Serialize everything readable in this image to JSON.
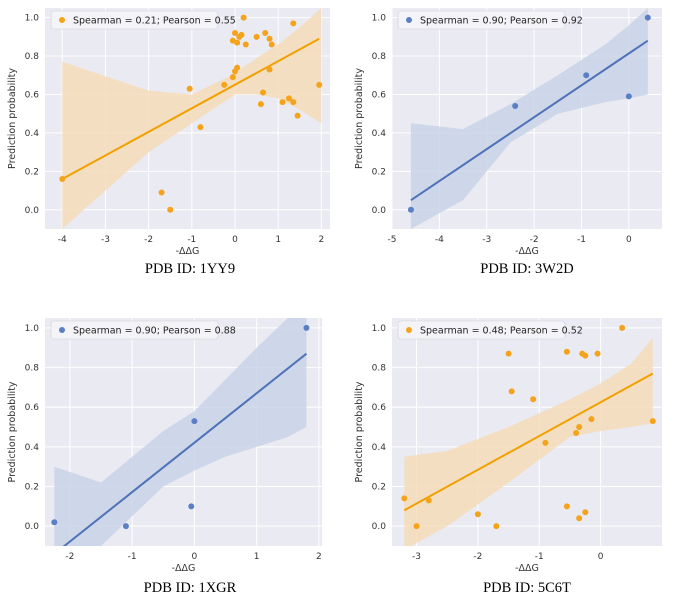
{
  "colors": {
    "orange": "#f5a31a",
    "orange_line": "#f0a000",
    "orange_band": "#f6dcb8",
    "blue": "#5b7fc4",
    "blue_line": "#4f72b8",
    "blue_band": "#c9d3e8",
    "panel_bg": "#eaeaf2",
    "grid": "#ffffff"
  },
  "chart_data": [
    {
      "type": "scatter",
      "caption": "PDB ID: 1YY9",
      "xlabel": "-ΔΔG",
      "ylabel": "Prediction probability",
      "legend": "Spearman = 0.21; Pearson = 0.55",
      "legend_position": "top-left",
      "color": "orange",
      "xlim": [
        -4.4,
        2.2
      ],
      "ylim": [
        -0.1,
        1.05
      ],
      "xticks": [
        -4,
        -3,
        -2,
        -1,
        0,
        1,
        2
      ],
      "yticks": [
        0.0,
        0.2,
        0.4,
        0.6,
        0.8,
        1.0
      ],
      "points": [
        [
          -4.0,
          0.16
        ],
        [
          -1.7,
          0.09
        ],
        [
          -1.5,
          0.0
        ],
        [
          -1.05,
          0.63
        ],
        [
          -0.8,
          0.43
        ],
        [
          -0.25,
          0.65
        ],
        [
          -0.05,
          0.69
        ],
        [
          0.0,
          0.72
        ],
        [
          0.05,
          0.74
        ],
        [
          -0.05,
          0.88
        ],
        [
          0.0,
          0.92
        ],
        [
          0.1,
          0.9
        ],
        [
          0.05,
          0.87
        ],
        [
          0.15,
          0.91
        ],
        [
          0.2,
          1.0
        ],
        [
          0.25,
          0.86
        ],
        [
          0.5,
          0.9
        ],
        [
          0.6,
          0.55
        ],
        [
          0.65,
          0.61
        ],
        [
          0.7,
          0.92
        ],
        [
          0.8,
          0.89
        ],
        [
          0.85,
          0.86
        ],
        [
          0.8,
          0.73
        ],
        [
          1.1,
          0.56
        ],
        [
          1.25,
          0.58
        ],
        [
          1.35,
          0.56
        ],
        [
          1.35,
          0.97
        ],
        [
          1.45,
          0.49
        ],
        [
          1.95,
          0.65
        ]
      ],
      "regression": {
        "x": [
          -4.0,
          1.95
        ],
        "y": [
          0.16,
          0.89
        ]
      },
      "band": [
        [
          -4.0,
          0.77,
          -0.1
        ],
        [
          -2.0,
          0.62,
          0.3
        ],
        [
          -1.0,
          0.6,
          0.45
        ],
        [
          0.0,
          0.71,
          0.6
        ],
        [
          0.5,
          0.79,
          0.6
        ],
        [
          1.0,
          0.86,
          0.58
        ],
        [
          1.5,
          0.95,
          0.52
        ],
        [
          2.0,
          1.05,
          0.45
        ]
      ]
    },
    {
      "type": "scatter",
      "caption": "PDB ID: 3W2D",
      "xlabel": "-ΔΔG",
      "ylabel": "Prediction probability",
      "legend": "Spearman = 0.90; Pearson = 0.92",
      "legend_position": "top-left",
      "color": "blue",
      "xlim": [
        -5.0,
        0.7
      ],
      "ylim": [
        -0.1,
        1.05
      ],
      "xticks": [
        -5,
        -4,
        -3,
        -2,
        -1,
        0
      ],
      "yticks": [
        0.0,
        0.2,
        0.4,
        0.6,
        0.8,
        1.0
      ],
      "points": [
        [
          -4.6,
          0.0
        ],
        [
          -2.4,
          0.54
        ],
        [
          -0.9,
          0.7
        ],
        [
          0.0,
          0.59
        ],
        [
          0.4,
          1.0
        ]
      ],
      "regression": {
        "x": [
          -4.6,
          0.4
        ],
        "y": [
          0.05,
          0.88
        ]
      },
      "band": [
        [
          -4.6,
          0.45,
          -0.1
        ],
        [
          -3.5,
          0.42,
          0.05
        ],
        [
          -2.5,
          0.55,
          0.35
        ],
        [
          -1.5,
          0.7,
          0.5
        ],
        [
          -0.5,
          0.86,
          0.56
        ],
        [
          0.0,
          0.96,
          0.58
        ],
        [
          0.4,
          1.05,
          0.6
        ]
      ]
    },
    {
      "type": "scatter",
      "caption": "PDB ID: 1XGR",
      "xlabel": "-ΔΔG",
      "ylabel": "Prediction probability",
      "legend": "Spearman = 0.90; Pearson = 0.88",
      "legend_position": "top-left",
      "color": "blue",
      "xlim": [
        -2.4,
        2.05
      ],
      "ylim": [
        -0.1,
        1.05
      ],
      "xticks": [
        -2,
        -1,
        0,
        1,
        2
      ],
      "yticks": [
        0.0,
        0.2,
        0.4,
        0.6,
        0.8,
        1.0
      ],
      "points": [
        [
          -2.25,
          0.02
        ],
        [
          -1.1,
          0.0
        ],
        [
          -0.05,
          0.1
        ],
        [
          0.0,
          0.53
        ],
        [
          1.8,
          1.0
        ]
      ],
      "regression": {
        "x": [
          -2.25,
          1.8
        ],
        "y": [
          -0.14,
          0.87
        ]
      },
      "band": [
        [
          -2.25,
          0.3,
          -0.1
        ],
        [
          -1.5,
          0.22,
          -0.1
        ],
        [
          -0.5,
          0.48,
          0.2
        ],
        [
          0.0,
          0.58,
          0.28
        ],
        [
          0.5,
          0.74,
          0.35
        ],
        [
          1.0,
          0.9,
          0.4
        ],
        [
          1.5,
          1.05,
          0.45
        ],
        [
          1.8,
          1.05,
          0.5
        ]
      ]
    },
    {
      "type": "scatter",
      "caption": "PDB ID: 5C6T",
      "xlabel": "-ΔΔG",
      "ylabel": "Prediction probability",
      "legend": "Spearman = 0.48; Pearson = 0.52",
      "legend_position": "top-left",
      "color": "orange",
      "xlim": [
        -3.4,
        1.0
      ],
      "ylim": [
        -0.1,
        1.05
      ],
      "xticks": [
        -3,
        -2,
        -1,
        0
      ],
      "yticks": [
        0.0,
        0.2,
        0.4,
        0.6,
        0.8,
        1.0
      ],
      "points": [
        [
          -3.2,
          0.14
        ],
        [
          -3.0,
          0.0
        ],
        [
          -2.8,
          0.13
        ],
        [
          -2.0,
          0.06
        ],
        [
          -1.7,
          0.0
        ],
        [
          -1.5,
          0.87
        ],
        [
          -1.45,
          0.68
        ],
        [
          -1.1,
          0.64
        ],
        [
          -0.9,
          0.42
        ],
        [
          -0.55,
          0.1
        ],
        [
          -0.55,
          0.88
        ],
        [
          -0.4,
          0.47
        ],
        [
          -0.35,
          0.5
        ],
        [
          -0.35,
          0.04
        ],
        [
          -0.3,
          0.87
        ],
        [
          -0.25,
          0.86
        ],
        [
          -0.25,
          0.07
        ],
        [
          -0.15,
          0.54
        ],
        [
          -0.05,
          0.87
        ],
        [
          0.35,
          1.0
        ],
        [
          0.85,
          0.53
        ]
      ],
      "regression": {
        "x": [
          -3.2,
          0.85
        ],
        "y": [
          0.08,
          0.77
        ]
      },
      "band": [
        [
          -3.2,
          0.35,
          -0.12
        ],
        [
          -2.5,
          0.38,
          0.0
        ],
        [
          -1.5,
          0.5,
          0.22
        ],
        [
          -0.5,
          0.64,
          0.45
        ],
        [
          0.0,
          0.72,
          0.48
        ],
        [
          0.5,
          0.82,
          0.5
        ],
        [
          0.85,
          0.95,
          0.52
        ]
      ]
    }
  ]
}
